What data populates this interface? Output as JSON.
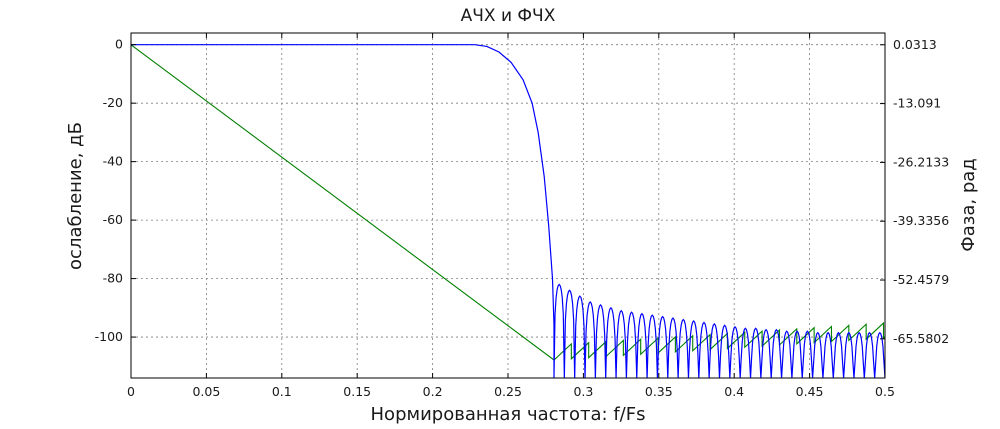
{
  "chart_data": {
    "type": "line",
    "title": "АЧХ и ФЧХ",
    "xlabel": "Нормированная частота: f/Fs",
    "ylabel": "ослабление, дБ",
    "y2label": "Фаза, рад",
    "xlim": [
      0,
      0.5
    ],
    "ylim": [
      -114,
      4
    ],
    "y2lim": [
      -74.317,
      2.657
    ],
    "grid": true,
    "x_ticks": [
      "0",
      "0.05",
      "0.1",
      "0.15",
      "0.2",
      "0.25",
      "0.3",
      "0.35",
      "0.4",
      "0.45",
      "0.5"
    ],
    "x_tick_values": [
      0,
      0.05,
      0.1,
      0.15,
      0.2,
      0.25,
      0.3,
      0.35,
      0.4,
      0.45,
      0.5
    ],
    "y_ticks": [
      "0",
      "-20",
      "-40",
      "-60",
      "-80",
      "-100"
    ],
    "y_tick_values": [
      0,
      -20,
      -40,
      -60,
      -80,
      -100
    ],
    "y2_ticks": [
      "0.0313",
      "-13.091",
      "-26.2133",
      "-39.3356",
      "-52.4579",
      "-65.5802"
    ],
    "y2_tick_values": [
      0.0313,
      -13.091,
      -26.2133,
      -39.3356,
      -52.4579,
      -65.5802
    ],
    "series": [
      {
        "color": "#0000ff",
        "axis": "left",
        "passband": {
          "x": [
            0,
            0.228,
            0.236,
            0.244,
            0.252,
            0.26,
            0.266,
            0.27,
            0.274,
            0.277,
            0.2795,
            0.2805
          ],
          "y": [
            0,
            0,
            -0.6,
            -2.5,
            -6,
            -12,
            -20,
            -30,
            -45,
            -62,
            -80,
            -96
          ]
        },
        "stopband_lobe_peaks_db": [
          -82,
          -84,
          -86,
          -88,
          -89,
          -90,
          -91,
          -91.5,
          -92,
          -92.5,
          -93,
          -93.5,
          -94,
          -94.5,
          -95,
          -95.5,
          -96,
          -96.5,
          -97,
          -97,
          -97.5,
          -97.5,
          -98,
          -98,
          -98,
          -98.5,
          -98.5,
          -98.5,
          -98.5,
          -98.5,
          -98.5,
          -98.5
        ],
        "stopband_start": 0.2805,
        "stopband_end": 0.5,
        "stopband_floor_db": -114
      },
      {
        "color": "#008000",
        "axis": "right",
        "linear": {
          "x": [
            0,
            0.2805
          ],
          "y": [
            0.0313,
            -70.3
          ]
        },
        "sawtooth": {
          "x_start": 0.2805,
          "x_end": 0.5,
          "period": 0.0115,
          "start_low": -70.3,
          "end_low": -65.4,
          "jump": 3.6
        }
      }
    ]
  }
}
